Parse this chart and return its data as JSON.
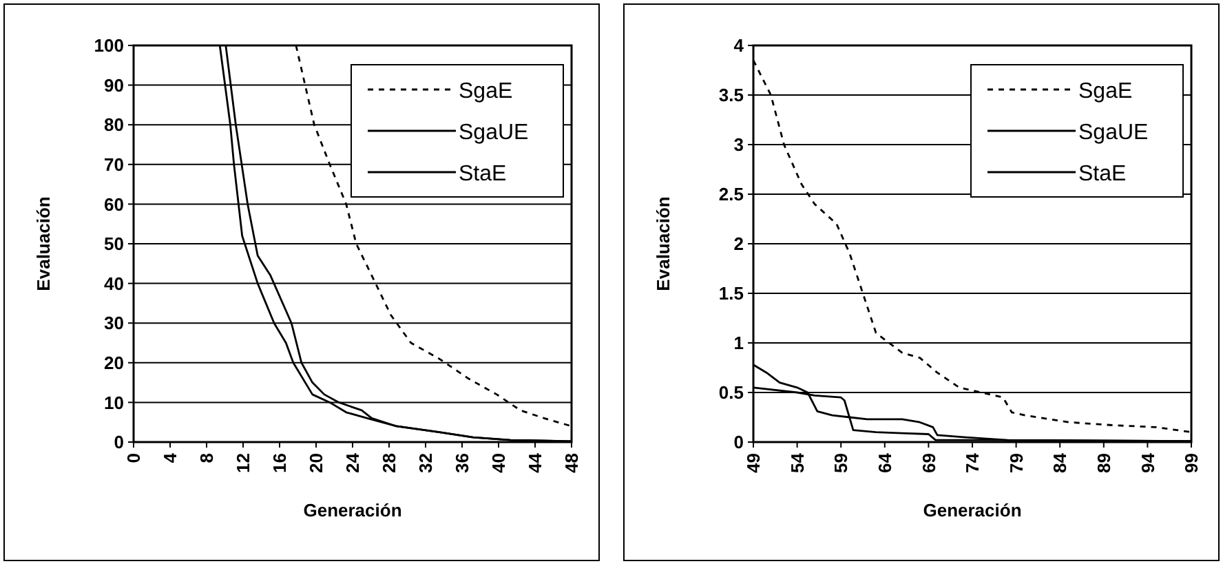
{
  "chart_data": [
    {
      "type": "line",
      "xlabel": "Generación",
      "ylabel": "Evaluación",
      "xlim": [
        0,
        48
      ],
      "xticks": [
        0,
        4,
        8,
        12,
        16,
        20,
        24,
        28,
        32,
        36,
        40,
        44,
        48
      ],
      "ylim": [
        0,
        100
      ],
      "yticks": [
        0,
        10,
        20,
        30,
        40,
        50,
        60,
        70,
        80,
        90,
        100
      ],
      "grid": "y",
      "legend": "top right",
      "marker": "none",
      "series": [
        {
          "name": "SgaE",
          "color": "#000000",
          "line_style": "dashed",
          "x": [
            17.8,
            18.8,
            19.8,
            21.5,
            23.3,
            24.4,
            26.1,
            28.2,
            30.4,
            33.5,
            36.7,
            39.8,
            42.4,
            45,
            48
          ],
          "values": [
            100,
            90,
            80,
            70,
            60,
            50,
            42,
            32,
            25,
            21,
            16,
            12,
            8,
            6,
            4
          ]
        },
        {
          "name": "SgaUE",
          "color": "#000000",
          "line_style": "solid",
          "x": [
            9.45,
            10.6,
            11,
            11.9,
            13.6,
            15.4,
            16.7,
            17.5,
            19.6,
            21.5,
            23.3,
            25.6,
            28.8,
            33.5,
            37.2,
            41.3,
            48
          ],
          "values": [
            100,
            80,
            70,
            52,
            40,
            30,
            25,
            20,
            12,
            10,
            7.5,
            6,
            4,
            2.5,
            1.2,
            0.5,
            0.2
          ]
        },
        {
          "name": "StaE",
          "color": "#000000",
          "line_style": "solid",
          "x": [
            10.1,
            11.2,
            12.5,
            13.6,
            15,
            17.3,
            18.4,
            19.6,
            20.9,
            22.5,
            25,
            26.1,
            28.8,
            33.5,
            37.2,
            41.3,
            48
          ],
          "values": [
            100,
            80,
            60,
            47,
            42,
            30,
            20,
            15,
            12,
            10,
            8,
            6,
            4,
            2.5,
            1.2,
            0.5,
            0.2
          ]
        }
      ]
    },
    {
      "type": "line",
      "xlabel": "Generación",
      "ylabel": "Evaluación",
      "xlim": [
        49,
        99
      ],
      "xticks": [
        49,
        54,
        59,
        64,
        69,
        74,
        79,
        84,
        89,
        94,
        99
      ],
      "ylim": [
        0,
        4
      ],
      "yticks": [
        0,
        0.5,
        1,
        1.5,
        2,
        2.5,
        3,
        3.5,
        4
      ],
      "grid": "y",
      "legend": "top right",
      "marker": "none",
      "series": [
        {
          "name": "SgaE",
          "color": "#000000",
          "line_style": "dashed",
          "x": [
            49,
            51,
            52.5,
            54.5,
            56,
            58.5,
            60,
            61.5,
            63,
            64.5,
            66,
            68,
            70,
            72.5,
            75,
            77.5,
            78.5,
            80,
            85,
            90,
            95,
            99
          ],
          "values": [
            3.85,
            3.5,
            3,
            2.6,
            2.4,
            2.2,
            1.9,
            1.5,
            1.1,
            1,
            0.9,
            0.85,
            0.7,
            0.55,
            0.5,
            0.45,
            0.3,
            0.27,
            0.2,
            0.17,
            0.15,
            0.1
          ]
        },
        {
          "name": "SgaUE",
          "color": "#000000",
          "line_style": "solid",
          "x": [
            49,
            50.5,
            52,
            54,
            55.2,
            56.3,
            58,
            60,
            62,
            66,
            68,
            69.5,
            70,
            73,
            78,
            99
          ],
          "values": [
            0.78,
            0.7,
            0.6,
            0.55,
            0.5,
            0.31,
            0.27,
            0.25,
            0.23,
            0.23,
            0.2,
            0.15,
            0.07,
            0.05,
            0.02,
            0.01
          ]
        },
        {
          "name": "StaE",
          "color": "#000000",
          "line_style": "solid",
          "x": [
            49,
            54,
            56,
            59,
            59.4,
            60.4,
            63,
            66,
            69,
            69.8,
            75,
            99
          ],
          "values": [
            0.55,
            0.5,
            0.47,
            0.45,
            0.42,
            0.12,
            0.1,
            0.09,
            0.08,
            0.02,
            0.02,
            0.01
          ]
        }
      ]
    }
  ]
}
